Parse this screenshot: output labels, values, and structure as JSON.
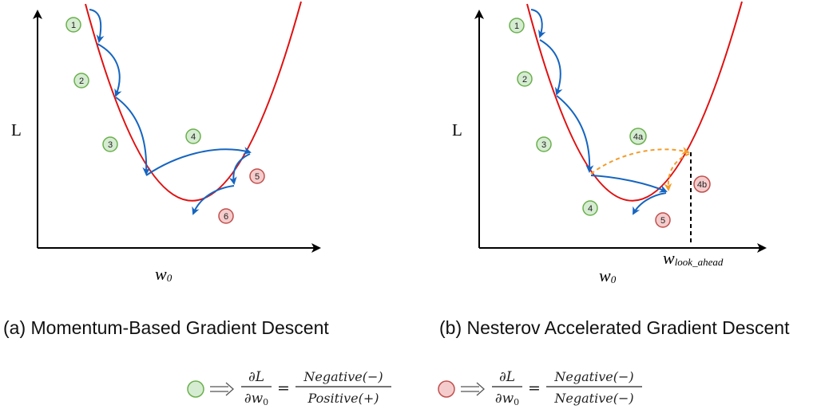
{
  "left_panel": {
    "y_label": "L",
    "x_label_main": "w",
    "x_label_sub": "0",
    "caption": "(a) Momentum-Based Gradient Descent",
    "steps": [
      {
        "label": "1",
        "color": "green"
      },
      {
        "label": "2",
        "color": "green"
      },
      {
        "label": "3",
        "color": "green"
      },
      {
        "label": "4",
        "color": "green"
      },
      {
        "label": "5",
        "color": "red"
      },
      {
        "label": "6",
        "color": "red"
      }
    ]
  },
  "right_panel": {
    "y_label": "L",
    "x_label_main": "w",
    "x_label_sub": "0",
    "lookahead_main": "w",
    "lookahead_sub": "look_ahead",
    "caption": "(b) Nesterov Accelerated Gradient Descent",
    "steps": [
      {
        "label": "1",
        "color": "green"
      },
      {
        "label": "2",
        "color": "green"
      },
      {
        "label": "3",
        "color": "green"
      },
      {
        "label": "4a",
        "color": "green"
      },
      {
        "label": "4b",
        "color": "red"
      },
      {
        "label": "4",
        "color": "green"
      },
      {
        "label": "5",
        "color": "red"
      }
    ]
  },
  "legend": {
    "green": {
      "lhs_num": "∂L",
      "lhs_den": "∂w",
      "lhs_den_sub": "0",
      "eq": "=",
      "rhs_num": "Negative(−)",
      "rhs_den": "Positive(+)"
    },
    "red": {
      "lhs_num": "∂L",
      "lhs_den": "∂w",
      "lhs_den_sub": "0",
      "eq": "=",
      "rhs_num": "Negative(−)",
      "rhs_den": "Negative(−)"
    }
  },
  "colors": {
    "curve": "#e01010",
    "momentum_arrow": "#1565c0",
    "lookahead_arrow": "#f39c2a",
    "positive_badge": "#d6ecd2",
    "negative_badge": "#f5cccc"
  }
}
